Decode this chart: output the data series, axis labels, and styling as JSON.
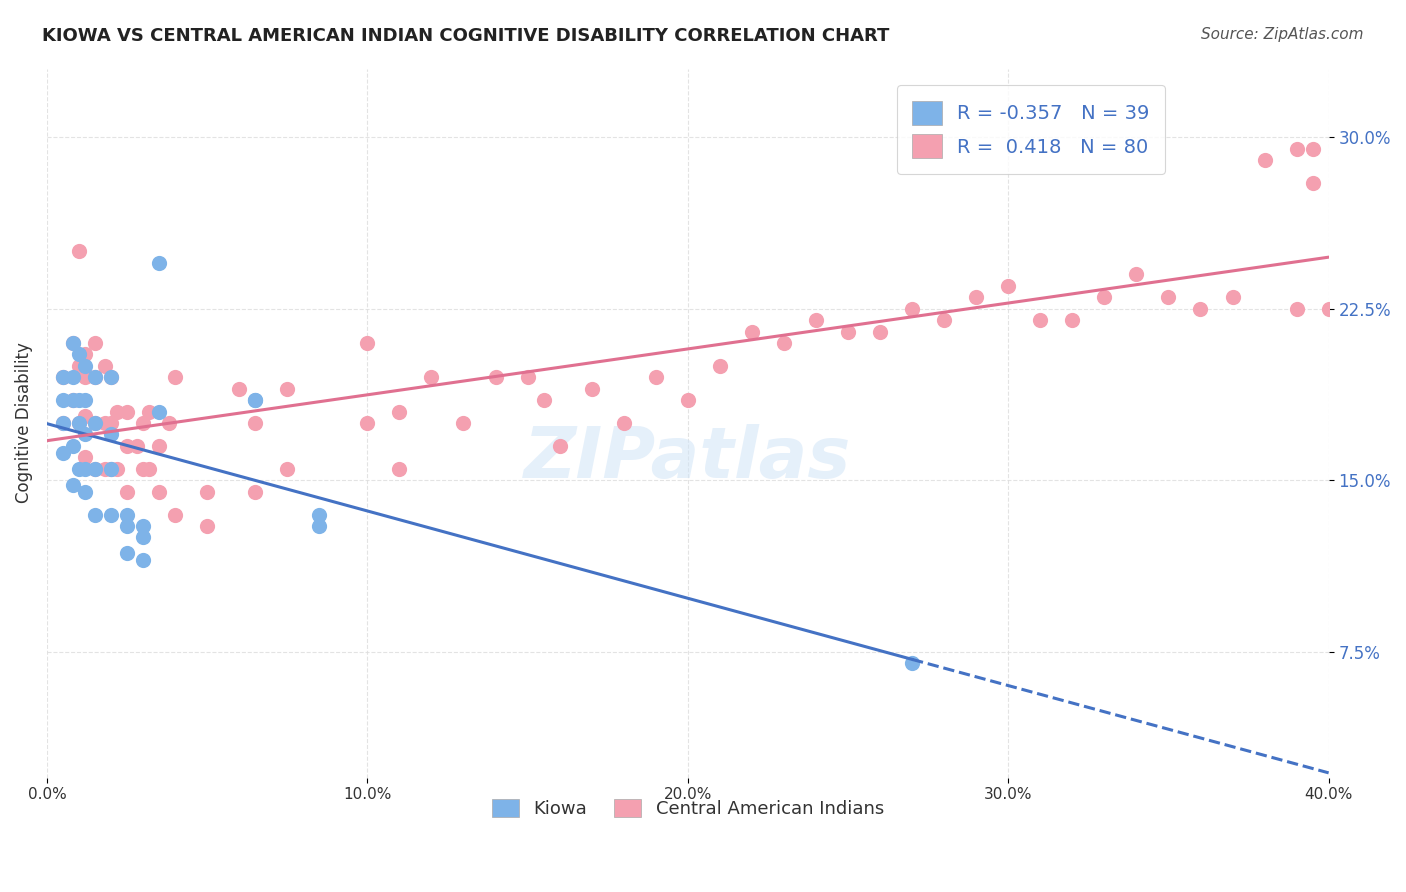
{
  "title": "KIOWA VS CENTRAL AMERICAN INDIAN COGNITIVE DISABILITY CORRELATION CHART",
  "source": "Source: ZipAtlas.com",
  "ylabel": "Cognitive Disability",
  "ytick_labels": [
    "7.5%",
    "15.0%",
    "22.5%",
    "30.0%"
  ],
  "ytick_values": [
    0.075,
    0.15,
    0.225,
    0.3
  ],
  "xlim": [
    0.0,
    0.4
  ],
  "ylim": [
    0.02,
    0.33
  ],
  "watermark": "ZIPatlas",
  "legend_blue_r": "-0.357",
  "legend_blue_n": "39",
  "legend_pink_r": "0.418",
  "legend_pink_n": "80",
  "kiowa_color": "#7eb3e8",
  "cai_color": "#f4a0b0",
  "line_blue_color": "#4472C4",
  "line_pink_color": "#E07090",
  "kiowa_points_x": [
    0.005,
    0.005,
    0.005,
    0.005,
    0.008,
    0.008,
    0.008,
    0.008,
    0.008,
    0.01,
    0.01,
    0.01,
    0.01,
    0.012,
    0.012,
    0.012,
    0.012,
    0.012,
    0.015,
    0.015,
    0.015,
    0.015,
    0.02,
    0.02,
    0.02,
    0.02,
    0.025,
    0.025,
    0.025,
    0.03,
    0.03,
    0.03,
    0.035,
    0.035,
    0.065,
    0.065,
    0.085,
    0.085,
    0.27
  ],
  "kiowa_points_y": [
    0.195,
    0.185,
    0.175,
    0.162,
    0.21,
    0.195,
    0.185,
    0.165,
    0.148,
    0.205,
    0.185,
    0.175,
    0.155,
    0.2,
    0.185,
    0.17,
    0.155,
    0.145,
    0.195,
    0.175,
    0.155,
    0.135,
    0.195,
    0.17,
    0.155,
    0.135,
    0.135,
    0.13,
    0.118,
    0.13,
    0.125,
    0.115,
    0.18,
    0.245,
    0.185,
    0.185,
    0.135,
    0.13,
    0.07
  ],
  "cai_points_x": [
    0.005,
    0.005,
    0.008,
    0.008,
    0.01,
    0.01,
    0.01,
    0.012,
    0.012,
    0.012,
    0.012,
    0.015,
    0.015,
    0.015,
    0.015,
    0.018,
    0.018,
    0.018,
    0.02,
    0.02,
    0.02,
    0.022,
    0.022,
    0.025,
    0.025,
    0.025,
    0.028,
    0.03,
    0.03,
    0.032,
    0.032,
    0.035,
    0.035,
    0.038,
    0.04,
    0.04,
    0.05,
    0.05,
    0.06,
    0.065,
    0.065,
    0.075,
    0.075,
    0.1,
    0.1,
    0.11,
    0.11,
    0.12,
    0.13,
    0.14,
    0.15,
    0.155,
    0.16,
    0.17,
    0.18,
    0.19,
    0.2,
    0.21,
    0.22,
    0.23,
    0.24,
    0.25,
    0.26,
    0.27,
    0.28,
    0.29,
    0.3,
    0.31,
    0.32,
    0.33,
    0.34,
    0.35,
    0.36,
    0.37,
    0.38,
    0.39,
    0.39,
    0.395,
    0.395,
    0.4
  ],
  "cai_points_y": [
    0.195,
    0.175,
    0.21,
    0.185,
    0.25,
    0.2,
    0.175,
    0.205,
    0.195,
    0.178,
    0.16,
    0.21,
    0.195,
    0.175,
    0.155,
    0.2,
    0.175,
    0.155,
    0.195,
    0.175,
    0.155,
    0.18,
    0.155,
    0.18,
    0.165,
    0.145,
    0.165,
    0.175,
    0.155,
    0.18,
    0.155,
    0.165,
    0.145,
    0.175,
    0.195,
    0.135,
    0.145,
    0.13,
    0.19,
    0.175,
    0.145,
    0.19,
    0.155,
    0.21,
    0.175,
    0.18,
    0.155,
    0.195,
    0.175,
    0.195,
    0.195,
    0.185,
    0.165,
    0.19,
    0.175,
    0.195,
    0.185,
    0.2,
    0.215,
    0.21,
    0.22,
    0.215,
    0.215,
    0.225,
    0.22,
    0.23,
    0.235,
    0.22,
    0.22,
    0.23,
    0.24,
    0.23,
    0.225,
    0.23,
    0.29,
    0.295,
    0.225,
    0.28,
    0.295,
    0.225
  ],
  "background_color": "#ffffff",
  "grid_color": "#dddddd",
  "xtick_labels": [
    "0.0%",
    "10.0%",
    "20.0%",
    "30.0%",
    "40.0%"
  ],
  "xtick_values": [
    0.0,
    0.1,
    0.2,
    0.3,
    0.4
  ]
}
